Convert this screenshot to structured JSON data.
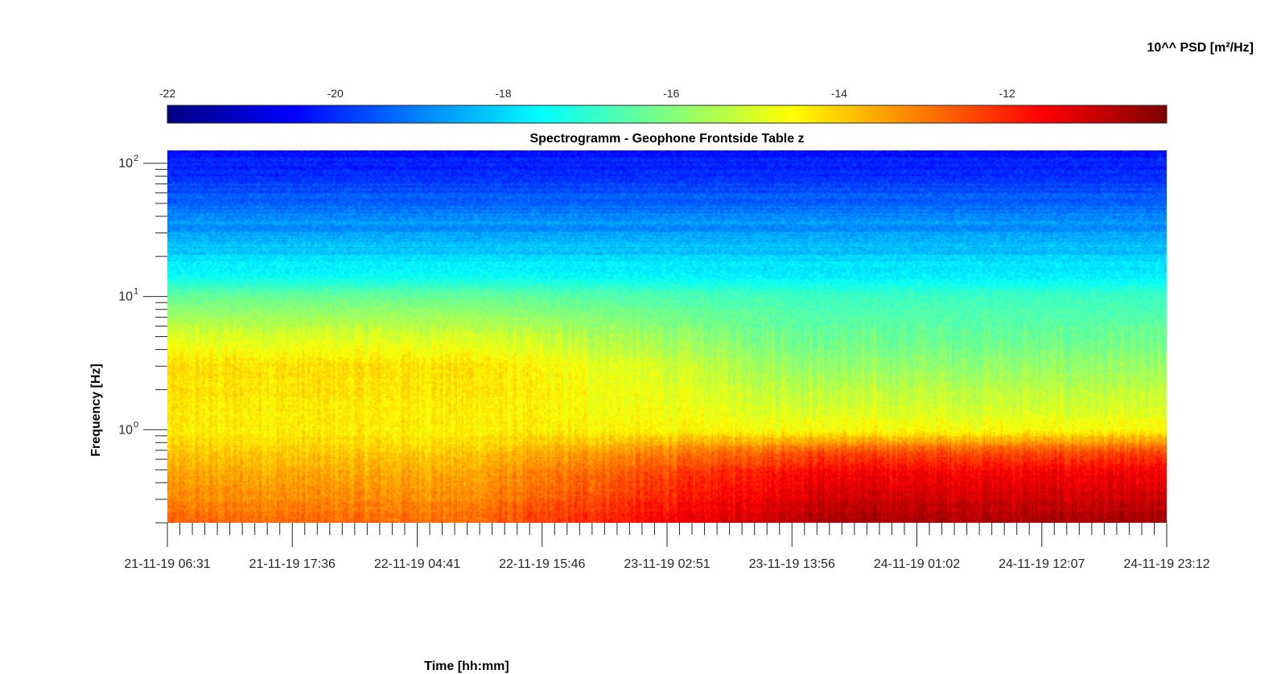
{
  "chart_data": {
    "type": "heatmap",
    "title": "Spectrogramm - Geophone Frontside Table z",
    "xlabel": "Time [hh:mm]",
    "ylabel": "Frequency [Hz]",
    "yscale": "log",
    "ylim": [
      0.2,
      125
    ],
    "y_ticks": [
      {
        "base": "10",
        "exp": "0",
        "value": 1
      },
      {
        "base": "10",
        "exp": "1",
        "value": 10
      },
      {
        "base": "10",
        "exp": "2",
        "value": 100
      }
    ],
    "x_ticks": [
      "21-11-19 06:31",
      "21-11-19 17:36",
      "22-11-19 04:41",
      "22-11-19 15:46",
      "23-11-19 02:51",
      "23-11-19 13:56",
      "24-11-19 01:02",
      "24-11-19 12:07",
      "24-11-19 23:12"
    ],
    "colorbar": {
      "label": "10^^ PSD [m²/Hz]",
      "range": [
        -22,
        -10.1
      ],
      "ticks": [
        "-22",
        "-20",
        "-18",
        "-16",
        "-14",
        "-12"
      ],
      "tick_values": [
        -22,
        -20,
        -18,
        -16,
        -14,
        -12
      ],
      "colormap": "jet"
    },
    "psd_profile_log10": [
      {
        "f": 0.2,
        "early": -12.8,
        "late": -10.6
      },
      {
        "f": 0.3,
        "early": -13.2,
        "late": -11.0
      },
      {
        "f": 0.5,
        "early": -13.6,
        "late": -11.6
      },
      {
        "f": 0.7,
        "early": -14.0,
        "late": -12.6
      },
      {
        "f": 1.0,
        "early": -14.4,
        "late": -14.6
      },
      {
        "f": 3.0,
        "early": -14.2,
        "late": -15.8
      },
      {
        "f": 5.0,
        "early": -15.0,
        "late": -16.3
      },
      {
        "f": 10.0,
        "early": -16.3,
        "late": -16.8
      },
      {
        "f": 15.0,
        "early": -17.6,
        "late": -17.8
      },
      {
        "f": 30.0,
        "early": -18.6,
        "late": -18.6
      },
      {
        "f": 60.0,
        "early": -19.6,
        "late": -19.6
      },
      {
        "f": 125.0,
        "early": -20.4,
        "late": -20.4
      }
    ]
  }
}
